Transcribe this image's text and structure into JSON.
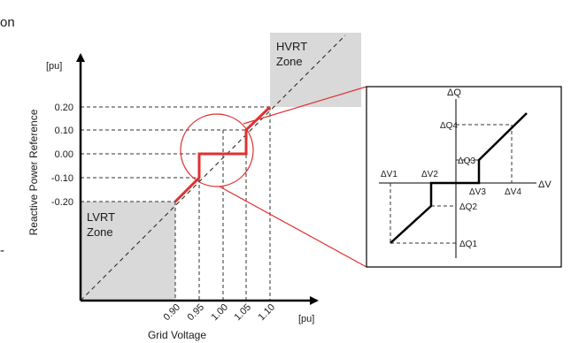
{
  "fragments": {
    "top_left": "on",
    "mid_left": "-"
  },
  "main_plot": {
    "y_label": "Reactive Power Reference",
    "y_unit": "[pu]",
    "x_label": "Grid Voltage",
    "x_unit": "[pu]",
    "y_ticks": [
      "0.20",
      "0.10",
      "0.00",
      "-0.10",
      "-0.20"
    ],
    "x_ticks": [
      "0.90",
      "0.95",
      "1.00",
      "1.05",
      "1.10"
    ],
    "lvrt_zone": {
      "line1": "LVRT",
      "line2": "Zone"
    },
    "hvrt_zone": {
      "line1": "HVRT",
      "line2": "Zone"
    }
  },
  "inset": {
    "y_axis": "ΔQ",
    "x_axis": "ΔV",
    "q_labels": [
      "ΔQ4",
      "ΔQ3",
      "ΔQ2",
      "ΔQ1"
    ],
    "v_labels": [
      "ΔV1",
      "ΔV2",
      "ΔV3",
      "ΔV4"
    ]
  },
  "colors": {
    "curve": "#e03030",
    "zone_fill": "#d9d9d9",
    "axis": "#000000",
    "guides": "#333333"
  }
}
